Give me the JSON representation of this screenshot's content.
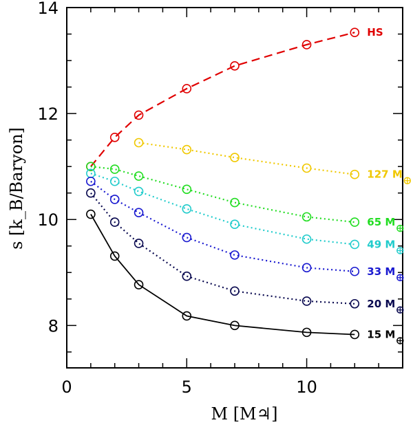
{
  "chart_data": {
    "type": "line",
    "xlabel": "M [M♃]",
    "ylabel": "s [k_B/Baryon]",
    "xlim": [
      0,
      14
    ],
    "ylim": [
      7.2,
      14
    ],
    "xticks": [
      0,
      5,
      10
    ],
    "yticks": [
      8,
      10,
      12,
      14
    ],
    "xtick_labels": [
      "0",
      "5",
      "10"
    ],
    "ytick_labels": [
      "8",
      "10",
      "12",
      "14"
    ],
    "grid": false,
    "series": [
      {
        "name": "HS",
        "label": "HS",
        "color": "#e00000",
        "dash": "dashed",
        "x": [
          1,
          2,
          3,
          5,
          7,
          10,
          12
        ],
        "y": [
          11.0,
          11.55,
          11.97,
          12.47,
          12.9,
          13.3,
          13.53
        ]
      },
      {
        "name": "127 M⊕",
        "label": "127 M",
        "color": "#f0c800",
        "dash": "dotted",
        "x": [
          3,
          5,
          7,
          10,
          12
        ],
        "y": [
          11.45,
          11.32,
          11.17,
          10.97,
          10.85
        ]
      },
      {
        "name": "65 M⊕",
        "label": "65 M",
        "color": "#22dd22",
        "dash": "dotted",
        "x": [
          1,
          2,
          3,
          5,
          7,
          10,
          12
        ],
        "y": [
          11.0,
          10.95,
          10.82,
          10.57,
          10.32,
          10.05,
          9.95
        ]
      },
      {
        "name": "49 M⊕",
        "label": "49 M",
        "color": "#22cccc",
        "dash": "dotted",
        "x": [
          1,
          2,
          3,
          5,
          7,
          10,
          12
        ],
        "y": [
          10.87,
          10.72,
          10.53,
          10.2,
          9.91,
          9.63,
          9.53
        ]
      },
      {
        "name": "33 M⊕",
        "label": "33 M",
        "color": "#1a1ad0",
        "dash": "dotted",
        "x": [
          1,
          2,
          3,
          5,
          7,
          10,
          12
        ],
        "y": [
          10.72,
          10.38,
          10.13,
          9.66,
          9.33,
          9.09,
          9.02
        ]
      },
      {
        "name": "20 M⊕",
        "label": "20 M",
        "color": "#0a0a50",
        "dash": "dotted",
        "x": [
          1,
          2,
          3,
          5,
          7,
          10,
          12
        ],
        "y": [
          10.5,
          9.95,
          9.55,
          8.93,
          8.65,
          8.46,
          8.41
        ]
      },
      {
        "name": "15 M⊕",
        "label": "15 M",
        "color": "#000000",
        "dash": "solid",
        "x": [
          1,
          2,
          3,
          5,
          7,
          10,
          12
        ],
        "y": [
          10.1,
          9.31,
          8.77,
          8.18,
          8.0,
          7.87,
          7.83
        ]
      }
    ]
  }
}
